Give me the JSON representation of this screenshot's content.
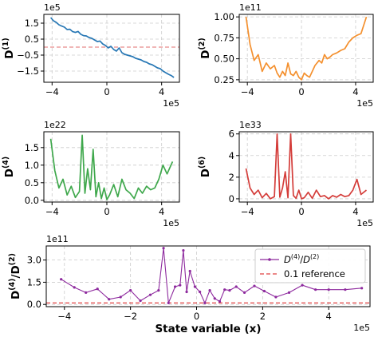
{
  "chart_data": [
    {
      "id": "d1",
      "type": "line",
      "ylabel_base": "D",
      "ylabel_sup": "(1)",
      "y_offset_text": "1e5",
      "x_offset_text": "1e5",
      "xlim": [
        -4.6,
        5.3
      ],
      "ylim": [
        -2.2,
        2.05
      ],
      "xticks": [
        -4,
        0,
        4
      ],
      "xtick_labels": [
        "−4",
        "0",
        "4"
      ],
      "yticks": [
        -1.5,
        -0.5,
        0.5,
        1.5
      ],
      "ytick_labels": [
        "−1.5",
        "−0.5",
        "0.5",
        "1.5"
      ],
      "reference_line": 0,
      "color": "#2878b5",
      "x": [
        -4.1,
        -3.9,
        -3.7,
        -3.5,
        -3.3,
        -3.1,
        -2.9,
        -2.7,
        -2.5,
        -2.3,
        -2.1,
        -1.9,
        -1.7,
        -1.5,
        -1.3,
        -1.1,
        -0.9,
        -0.7,
        -0.5,
        -0.3,
        -0.1,
        0.1,
        0.3,
        0.5,
        0.7,
        0.9,
        1.1,
        1.3,
        1.5,
        1.7,
        1.9,
        2.1,
        2.3,
        2.5,
        2.7,
        2.9,
        3.1,
        3.3,
        3.5,
        3.7,
        3.9,
        4.1,
        4.3,
        4.5,
        4.7,
        4.9
      ],
      "values": [
        1.85,
        1.65,
        1.55,
        1.4,
        1.32,
        1.25,
        1.1,
        1.12,
        0.97,
        0.92,
        0.98,
        0.8,
        0.72,
        0.7,
        0.6,
        0.55,
        0.45,
        0.35,
        0.38,
        0.2,
        0.1,
        -0.05,
        0.05,
        -0.15,
        -0.25,
        -0.05,
        -0.35,
        -0.45,
        -0.5,
        -0.55,
        -0.6,
        -0.7,
        -0.75,
        -0.8,
        -0.9,
        -0.95,
        -1.05,
        -1.1,
        -1.2,
        -1.3,
        -1.35,
        -1.5,
        -1.6,
        -1.7,
        -1.78,
        -1.9
      ]
    },
    {
      "id": "d2",
      "type": "line",
      "ylabel_base": "D",
      "ylabel_sup": "(2)",
      "y_offset_text": "1e11",
      "x_offset_text": "1e5",
      "xlim": [
        -4.6,
        5.3
      ],
      "ylim": [
        0.22,
        1.03
      ],
      "xticks": [
        -4,
        0,
        4
      ],
      "xtick_labels": [
        "−4",
        "0",
        "4"
      ],
      "yticks": [
        0.25,
        0.5,
        0.75,
        1.0
      ],
      "ytick_labels": [
        "0.25",
        "0.50",
        "0.75",
        "1.00"
      ],
      "color": "#f4902e",
      "x": [
        -4.1,
        -3.8,
        -3.5,
        -3.2,
        -2.9,
        -2.6,
        -2.3,
        -2.0,
        -1.8,
        -1.6,
        -1.4,
        -1.2,
        -1.0,
        -0.8,
        -0.6,
        -0.4,
        -0.2,
        0.0,
        0.2,
        0.4,
        0.6,
        0.8,
        1.0,
        1.3,
        1.5,
        1.7,
        1.9,
        2.1,
        2.3,
        2.6,
        2.9,
        3.2,
        3.5,
        3.8,
        4.1,
        4.4,
        4.8
      ],
      "values": [
        1.0,
        0.67,
        0.48,
        0.55,
        0.35,
        0.45,
        0.38,
        0.42,
        0.33,
        0.28,
        0.35,
        0.3,
        0.45,
        0.32,
        0.3,
        0.35,
        0.28,
        0.25,
        0.33,
        0.3,
        0.28,
        0.35,
        0.42,
        0.48,
        0.45,
        0.55,
        0.5,
        0.52,
        0.55,
        0.57,
        0.6,
        0.62,
        0.7,
        0.75,
        0.78,
        0.8,
        1.0
      ]
    },
    {
      "id": "d4",
      "type": "line",
      "ylabel_base": "D",
      "ylabel_sup": "(4)",
      "y_offset_text": "1e22",
      "x_offset_text": "1e5",
      "xlim": [
        -4.6,
        5.3
      ],
      "ylim": [
        -0.05,
        1.95
      ],
      "xticks": [
        -4,
        0,
        4
      ],
      "xtick_labels": [
        "−4",
        "0",
        "4"
      ],
      "yticks": [
        0.0,
        0.5,
        1.0,
        1.5
      ],
      "ytick_labels": [
        "0.0",
        "0.5",
        "1.0",
        "1.5"
      ],
      "color": "#3fa84c",
      "x": [
        -4.1,
        -3.8,
        -3.5,
        -3.2,
        -2.9,
        -2.6,
        -2.3,
        -2.0,
        -1.8,
        -1.6,
        -1.4,
        -1.2,
        -1.0,
        -0.8,
        -0.6,
        -0.4,
        -0.2,
        0.0,
        0.2,
        0.5,
        0.8,
        1.1,
        1.4,
        1.7,
        2.0,
        2.3,
        2.6,
        2.9,
        3.2,
        3.5,
        3.8,
        4.1,
        4.4,
        4.8
      ],
      "values": [
        1.75,
        0.85,
        0.35,
        0.6,
        0.15,
        0.4,
        0.08,
        0.25,
        1.85,
        0.2,
        0.9,
        0.3,
        1.45,
        0.1,
        0.5,
        0.05,
        0.35,
        0.02,
        0.15,
        0.45,
        0.1,
        0.6,
        0.3,
        0.2,
        0.05,
        0.35,
        0.2,
        0.4,
        0.3,
        0.35,
        0.6,
        1.0,
        0.75,
        1.1
      ]
    },
    {
      "id": "d6",
      "type": "line",
      "ylabel_base": "D",
      "ylabel_sup": "(6)",
      "y_offset_text": "1e33",
      "x_offset_text": "1e5",
      "xlim": [
        -4.6,
        5.3
      ],
      "ylim": [
        -0.3,
        6.2
      ],
      "xticks": [
        -4,
        0,
        4
      ],
      "xtick_labels": [
        "−4",
        "0",
        "4"
      ],
      "yticks": [
        0,
        2,
        4,
        6
      ],
      "ytick_labels": [
        "0",
        "2",
        "4",
        "6"
      ],
      "color": "#d43d3a",
      "x": [
        -4.1,
        -3.8,
        -3.5,
        -3.2,
        -2.9,
        -2.6,
        -2.3,
        -2.0,
        -1.8,
        -1.6,
        -1.4,
        -1.2,
        -1.0,
        -0.8,
        -0.6,
        -0.4,
        -0.2,
        0.0,
        0.2,
        0.5,
        0.8,
        1.1,
        1.4,
        1.7,
        2.0,
        2.3,
        2.6,
        2.9,
        3.2,
        3.5,
        3.8,
        4.1,
        4.4,
        4.8
      ],
      "values": [
        2.8,
        1.0,
        0.4,
        0.8,
        0.1,
        0.5,
        0.0,
        0.2,
        6.0,
        0.15,
        1.0,
        2.5,
        0.1,
        6.0,
        0.3,
        0.05,
        0.8,
        0.0,
        0.1,
        0.6,
        0.05,
        0.8,
        0.2,
        0.3,
        0.0,
        0.3,
        0.15,
        0.4,
        0.2,
        0.3,
        0.8,
        1.8,
        0.4,
        0.8
      ]
    },
    {
      "id": "ratio",
      "type": "line",
      "ylabel_base": "D",
      "ylabel_sup": "(4)",
      "ylabel_div_base": "D",
      "ylabel_div_sup": "(2)",
      "xlabel": "State variable (x)",
      "y_offset_text": "1e11",
      "x_offset_text": "1e5",
      "xlim": [
        -4.55,
        5.25
      ],
      "ylim": [
        -0.15,
        3.95
      ],
      "xticks": [
        -4,
        -2,
        0,
        2,
        4
      ],
      "xtick_labels": [
        "−4",
        "−2",
        "0",
        "2",
        "4"
      ],
      "yticks": [
        0.0,
        1.5,
        3.0
      ],
      "ytick_labels": [
        "0.0",
        "1.5",
        "3.0"
      ],
      "reference_line": 0.1,
      "color": "#8e2a9e",
      "ref_color": "#e04040",
      "legend": {
        "series_base": "D",
        "series_sup": "(4)",
        "series_div_base": "D",
        "series_div_sup": "(2)",
        "ref_label": "0.1 reference",
        "position": "top-right"
      },
      "x": [
        -4.1,
        -3.7,
        -3.35,
        -3.0,
        -2.65,
        -2.3,
        -2.0,
        -1.7,
        -1.4,
        -1.15,
        -1.0,
        -0.85,
        -0.65,
        -0.5,
        -0.4,
        -0.3,
        -0.2,
        -0.05,
        0.1,
        0.25,
        0.4,
        0.55,
        0.7,
        0.85,
        1.0,
        1.2,
        1.45,
        1.75,
        2.05,
        2.4,
        2.8,
        3.2,
        3.6,
        4.0,
        4.5,
        5.0
      ],
      "values": [
        1.7,
        1.15,
        0.8,
        1.05,
        0.35,
        0.5,
        0.95,
        0.25,
        0.65,
        0.95,
        3.8,
        0.1,
        1.2,
        1.3,
        3.65,
        0.85,
        2.25,
        1.2,
        0.85,
        0.1,
        0.95,
        0.4,
        0.2,
        1.0,
        0.95,
        1.2,
        0.8,
        1.25,
        0.9,
        0.5,
        0.8,
        1.3,
        1.0,
        1.0,
        1.0,
        1.1
      ]
    }
  ]
}
